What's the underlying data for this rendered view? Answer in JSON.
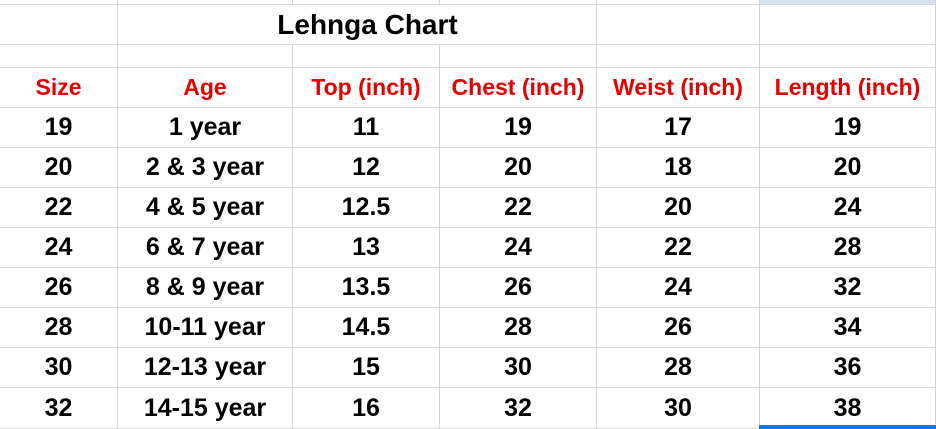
{
  "sheet": {
    "title": "Lehnga Chart",
    "columns": [
      "Size",
      "Age",
      "Top (inch)",
      "Chest (inch)",
      "Weist (inch)",
      "Length (inch)"
    ],
    "rows": [
      [
        "19",
        "1 year",
        "11",
        "19",
        "17",
        "19"
      ],
      [
        "20",
        "2 & 3 year",
        "12",
        "20",
        "18",
        "20"
      ],
      [
        "22",
        "4 & 5 year",
        "12.5",
        "22",
        "20",
        "24"
      ],
      [
        "24",
        "6 & 7 year",
        "13",
        "24",
        "22",
        "28"
      ],
      [
        "26",
        "8 & 9 year",
        "13.5",
        "26",
        "24",
        "32"
      ],
      [
        "28",
        "10-11 year",
        "14.5",
        "28",
        "26",
        "34"
      ],
      [
        "30",
        "12-13 year",
        "15",
        "30",
        "28",
        "36"
      ],
      [
        "32",
        "14-15 year",
        "16",
        "32",
        "30",
        "38"
      ]
    ],
    "colors": {
      "header_text": "#e60000",
      "body_text": "#000000",
      "gridline": "#d6d6d6",
      "selection_blue": "#1a73e8",
      "highlight_fill": "#d7e2f3"
    }
  }
}
